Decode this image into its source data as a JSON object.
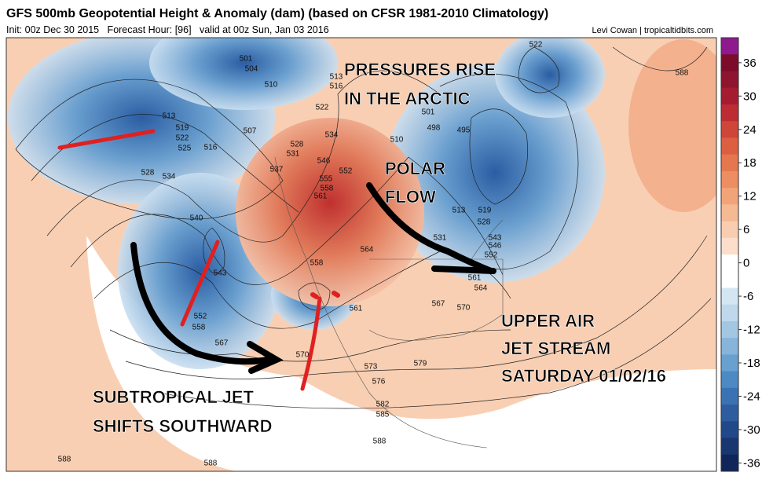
{
  "header": {
    "title": "GFS 500mb Geopotential Height & Anomaly (dam) (based on CFSR 1981-2010 Climatology)",
    "init": "Init: 00z Dec 30 2015   Forecast Hour: [96]   valid at 00z Sun, Jan 03 2016",
    "credit": "Levi Cowan | tropicaltidbits.com"
  },
  "annotations": [
    [
      "PRESSURES RISE",
      "IN THE ARCTIC"
    ],
    [
      "POLAR",
      "FLOW"
    ],
    [
      "UPPER AIR",
      "JET STREAM",
      "SATURDAY 01/02/16"
    ],
    [
      "SUBTROPICAL JET",
      "SHIFTS SOUTHWARD"
    ]
  ],
  "colorbar": {
    "ticks": [
      36,
      30,
      24,
      18,
      12,
      6,
      0,
      -6,
      -12,
      -18,
      -24,
      -30,
      -36
    ],
    "colors": [
      "#8e1a8e",
      "#7c0b2c",
      "#8f1430",
      "#a51c31",
      "#bd2c33",
      "#cf4537",
      "#dc5f42",
      "#e5774f",
      "#ec8e62",
      "#f1a47a",
      "#f5b993",
      "#f9cdb0",
      "#fcdecb",
      "#ffffff",
      "#ffffff",
      "#d5e6f3",
      "#bfd8ec",
      "#a3c7e3",
      "#86b4da",
      "#68a0cf",
      "#4d89c2",
      "#3b72b3",
      "#2d5c9f",
      "#214889",
      "#183670",
      "#10255a"
    ]
  },
  "contour_labels": [
    501,
    504,
    510,
    513,
    519,
    522,
    525,
    528,
    534,
    516,
    507,
    528,
    531,
    537,
    540,
    543,
    552,
    558,
    567,
    558,
    561,
    564,
    570,
    573,
    576,
    579,
    582,
    585,
    588,
    588,
    588,
    567,
    570,
    561,
    564,
    522,
    588,
    513,
    519,
    528,
    531,
    543,
    546,
    552,
    495,
    498,
    501,
    513,
    516,
    522,
    534,
    546,
    552,
    555,
    558,
    561,
    510
  ]
}
